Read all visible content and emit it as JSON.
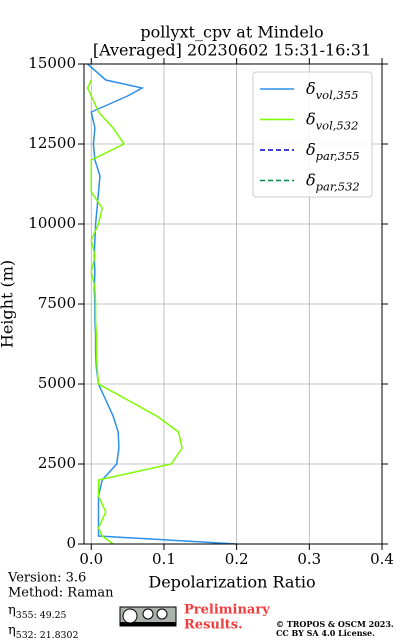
{
  "chart_data": {
    "type": "line",
    "title": [
      "pollyxt_cpv at Mindelo",
      "[Averaged] 20230602 15:31-16:31"
    ],
    "x_label": "Depolarization Ratio",
    "y_label": "Height (m)",
    "y": [
      0,
      250,
      500,
      1000,
      1500,
      2000,
      2500,
      3000,
      3500,
      4000,
      4500,
      5000,
      5500,
      6000,
      6500,
      7000,
      7500,
      8000,
      8500,
      9000,
      9500,
      10000,
      10500,
      11000,
      11500,
      12000,
      12500,
      13000,
      13500,
      14000,
      14250,
      14500,
      15000
    ],
    "series": [
      {
        "name": "δvol,355",
        "color": "#2e8fe8",
        "style": "solid",
        "values": [
          0.2,
          0.01,
          0.01,
          0.01,
          0.01,
          0.015,
          0.035,
          0.038,
          0.037,
          0.03,
          0.02,
          0.01,
          0.007,
          0.006,
          0.006,
          0.005,
          0.005,
          0.004,
          0.005,
          0.004,
          0.005,
          0.006,
          0.008,
          0.01,
          0.012,
          0.005,
          0.003,
          0.005,
          0.0,
          0.05,
          0.07,
          0.02,
          -0.005
        ]
      },
      {
        "name": "δvol,532",
        "color": "#7cfc00",
        "style": "solid",
        "values": [
          0.03,
          0.015,
          0.01,
          0.02,
          0.01,
          0.01,
          0.11,
          0.125,
          0.12,
          0.09,
          0.05,
          0.01,
          0.008,
          0.007,
          0.007,
          0.006,
          0.006,
          0.005,
          0.0,
          0.005,
          0.0,
          0.01,
          0.015,
          0.0,
          0.0,
          0.0,
          0.045,
          0.03,
          0.01,
          0.0,
          -0.005,
          0.0,
          null
        ]
      },
      {
        "name": "δpar,355",
        "color": "#0000cd",
        "style": "dashed",
        "values": [
          null,
          null,
          null,
          null,
          null,
          null,
          null,
          null,
          null,
          null,
          null,
          null,
          null,
          null,
          null,
          null,
          null,
          null,
          null,
          null,
          null,
          null,
          null,
          null,
          null,
          null,
          null,
          null,
          null,
          null,
          null,
          null,
          null
        ]
      },
      {
        "name": "δpar,532",
        "color": "#008b45",
        "style": "dashed",
        "values": [
          null,
          null,
          null,
          null,
          null,
          null,
          null,
          null,
          null,
          null,
          null,
          null,
          null,
          null,
          null,
          null,
          null,
          null,
          null,
          null,
          null,
          null,
          null,
          null,
          null,
          null,
          null,
          null,
          null,
          null,
          null,
          null,
          null
        ]
      }
    ],
    "xlim": [
      -0.01,
      0.4
    ],
    "xticks": [
      {
        "value": 0,
        "label": "0.0"
      },
      0.1,
      0.2,
      0.3,
      0.4
    ],
    "ylim": [
      0,
      15000
    ],
    "yticks": [
      0,
      2500,
      5000,
      7500,
      10000,
      12500,
      15000
    ],
    "grid": true,
    "legend": "upper right",
    "info": [
      "Version: 3.6",
      "Method: Raman",
      "η355:  49.25",
      "η532: 21.8302"
    ],
    "notice": [
      "Preliminary",
      "Results."
    ],
    "copyright": [
      "© TROPOS & OSCM 2023.",
      "CC BY SA 4.0 License."
    ]
  }
}
